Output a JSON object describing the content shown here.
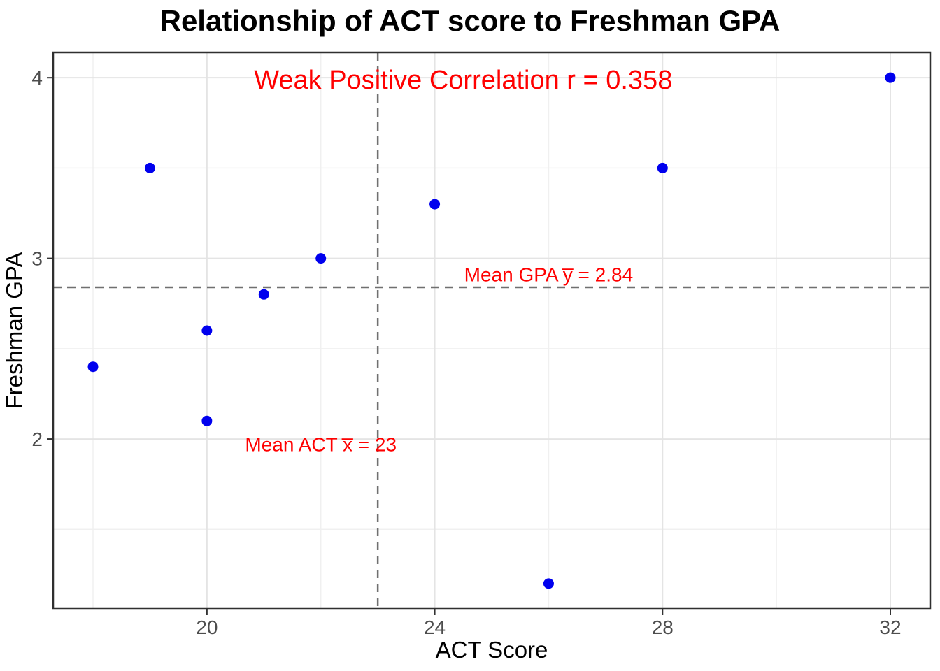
{
  "chart_data": {
    "type": "scatter",
    "title": "Relationship of ACT score to Freshman GPA",
    "xlabel": "ACT Score",
    "ylabel": "Freshman GPA",
    "points": [
      {
        "x": 18,
        "y": 2.4
      },
      {
        "x": 19,
        "y": 3.5
      },
      {
        "x": 20,
        "y": 2.6
      },
      {
        "x": 20,
        "y": 2.1
      },
      {
        "x": 21,
        "y": 2.8
      },
      {
        "x": 22,
        "y": 3.0
      },
      {
        "x": 24,
        "y": 3.3
      },
      {
        "x": 26,
        "y": 1.2
      },
      {
        "x": 28,
        "y": 3.5
      },
      {
        "x": 32,
        "y": 4.0
      }
    ],
    "xlim": [
      17.3,
      32.7
    ],
    "ylim": [
      1.06,
      4.14
    ],
    "x_ticks": [
      20,
      24,
      28,
      32
    ],
    "y_ticks": [
      2,
      3,
      4
    ],
    "x_minor_gridlines": [
      18,
      22,
      26,
      30
    ],
    "y_minor_gridlines": [
      1.5,
      2.5,
      3.5
    ],
    "grid": true,
    "legend": false,
    "mean_lines": {
      "x_mean": 23,
      "y_mean": 2.84,
      "style": "dashed"
    },
    "annotations": [
      {
        "id": "correlation",
        "text": "Weak Positive Correlation r = 0.358",
        "x": 24.5,
        "y": 3.99,
        "size": 38
      },
      {
        "id": "mean-gpa",
        "text": "Mean GPA y̅ = 2.84",
        "x": 26.0,
        "y": 2.91,
        "size": 28
      },
      {
        "id": "mean-act",
        "text": "Mean ACT x̅ = 23",
        "x": 22.0,
        "y": 1.97,
        "size": 28
      }
    ],
    "colors": {
      "point": "#0000EE",
      "annotation": "#FF0000",
      "mean_line": "#707070",
      "grid_major": "#E4E4E4",
      "grid_minor": "#F0F0F0",
      "panel_border": "#2F2F2F",
      "tick_mark": "#333333",
      "tick_label": "#4D4D4D",
      "title": "#000000",
      "axis_title": "#000000"
    }
  }
}
